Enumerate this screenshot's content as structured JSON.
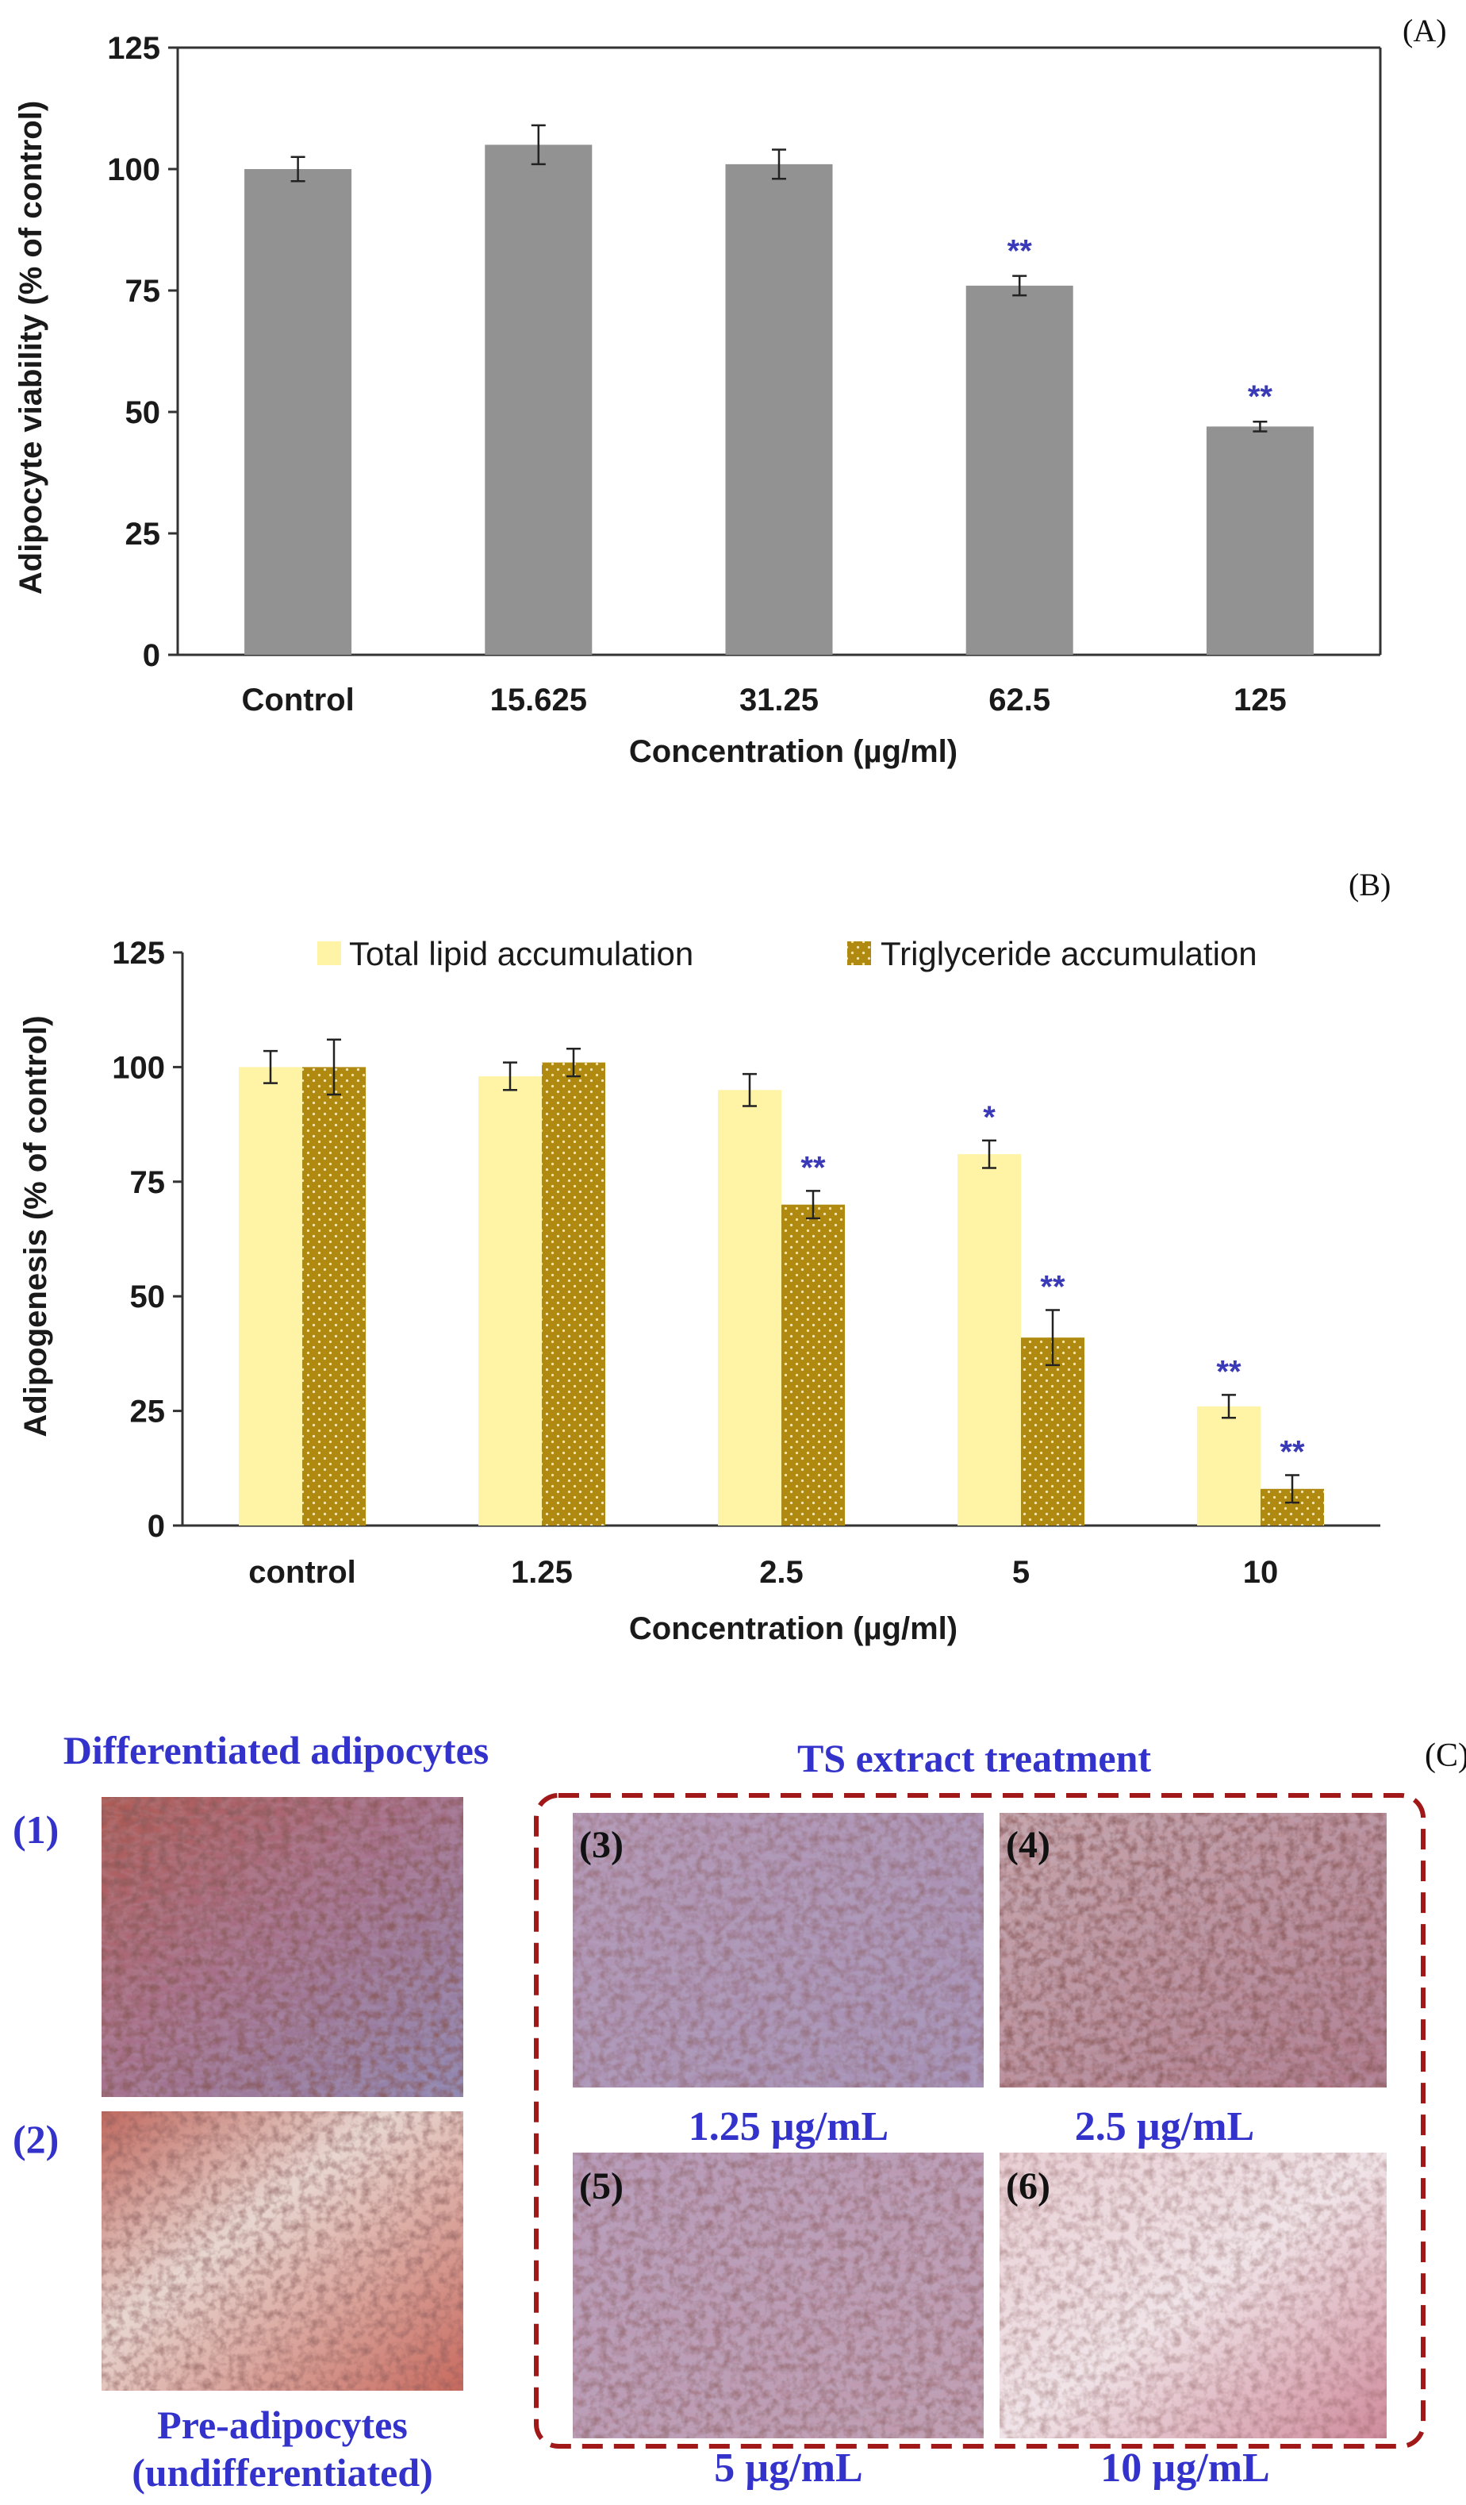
{
  "chart_data": [
    {
      "panel": "(A)",
      "type": "bar",
      "categories": [
        "Control",
        "15.625",
        "31.25",
        "62.5",
        "125"
      ],
      "values": [
        100,
        105,
        101,
        76,
        47
      ],
      "errors": [
        2.5,
        4,
        3,
        2,
        1
      ],
      "significance": [
        "",
        "",
        "",
        "**",
        "**"
      ],
      "ylabel": "Adipocyte viability (% of control)",
      "xlabel": "Concentration (µg/ml)",
      "ylim": [
        0,
        125
      ],
      "yticks": [
        "0",
        "25",
        "50",
        "75",
        "100",
        "125"
      ],
      "colors": {
        "bar": "#929292",
        "significance": "#3a3ab8"
      }
    },
    {
      "panel": "(B)",
      "type": "bar",
      "categories": [
        "control",
        "1.25",
        "2.5",
        "5",
        "10"
      ],
      "series": [
        {
          "name": "Total lipid accumulation",
          "values": [
            100,
            98,
            95,
            81,
            26
          ],
          "errors": [
            3.5,
            3,
            3.5,
            3,
            2.5
          ],
          "significance": [
            "",
            "",
            "",
            "*",
            "**"
          ],
          "color": "#fff3a6"
        },
        {
          "name": "Triglyceride accumulation",
          "values": [
            100,
            101,
            70,
            41,
            8
          ],
          "errors": [
            6,
            3,
            3,
            6,
            3
          ],
          "significance": [
            "",
            "",
            "**",
            "**",
            "**"
          ],
          "color": "#b08a10"
        }
      ],
      "ylabel": "Adipogenesis (% of control)",
      "xlabel": "Concentration (µg/ml)",
      "ylim": [
        0,
        125
      ],
      "yticks": [
        "0",
        "25",
        "50",
        "75",
        "100",
        "125"
      ],
      "legend": "top"
    }
  ],
  "panel_c": {
    "tag": "(C)",
    "left_heading": "Differentiated adipocytes",
    "right_heading": "TS extract treatment",
    "images": [
      {
        "label": "(1)",
        "caption": ""
      },
      {
        "label": "(2)",
        "caption": "Pre-adipocytes",
        "caption2": "(undifferentiated)"
      },
      {
        "label": "(3)",
        "caption": "1.25 µg/mL"
      },
      {
        "label": "(4)",
        "caption": "2.5 µg/mL"
      },
      {
        "label": "(5)",
        "caption": "5 µg/mL"
      },
      {
        "label": "(6)",
        "caption": "10 µg/mL"
      }
    ],
    "colors": {
      "dashed_box": "#a01818",
      "heading": "#3333cc"
    }
  }
}
